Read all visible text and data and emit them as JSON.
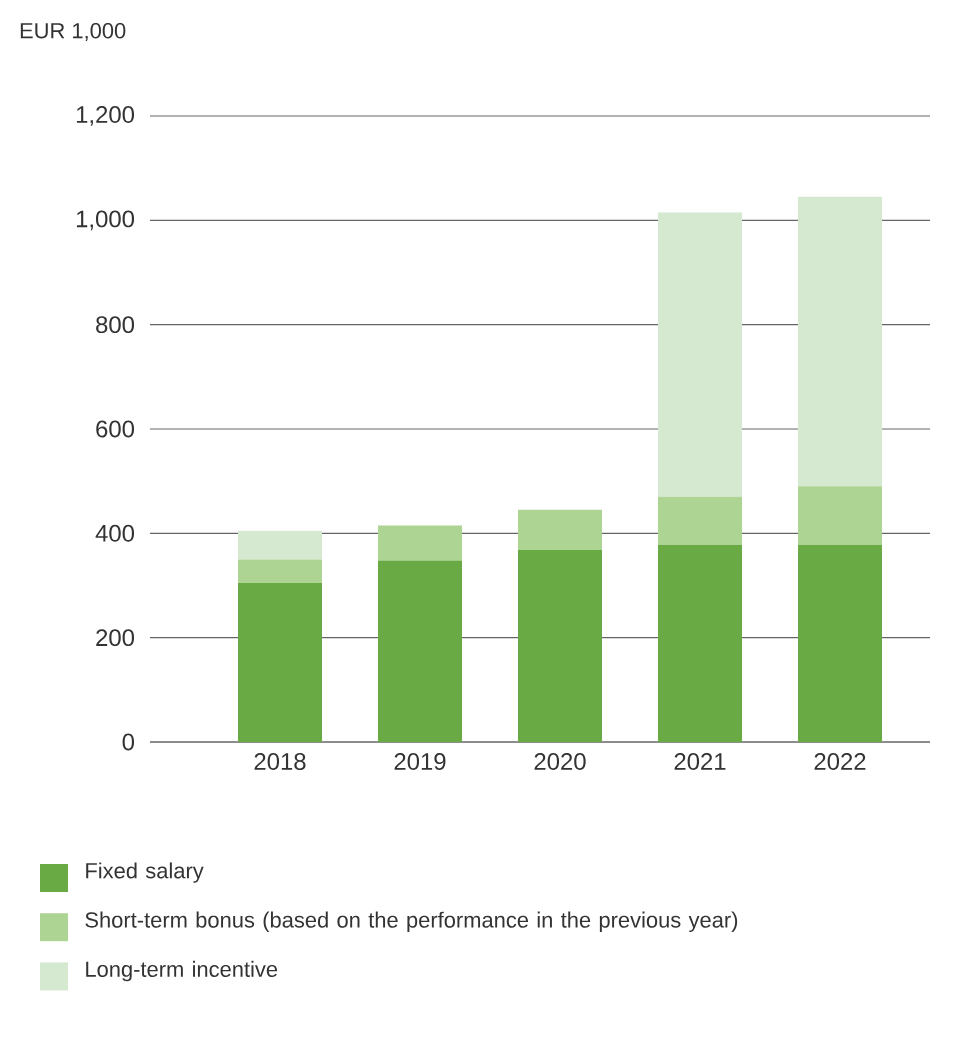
{
  "chart_data": {
    "type": "bar",
    "stacked": true,
    "ylabel": "EUR 1,000",
    "categories": [
      "2018",
      "2019",
      "2020",
      "2021",
      "2022"
    ],
    "series": [
      {
        "name": "Fixed salary",
        "color": "#6aaa45",
        "values": [
          305,
          348,
          368,
          378,
          378
        ]
      },
      {
        "name": "Short-term bonus (based on the performance in the previous year)",
        "color": "#aed494",
        "values": [
          45,
          67,
          77,
          92,
          112
        ]
      },
      {
        "name": "Long-term incentive",
        "color": "#d5e8d0",
        "values": [
          55,
          0,
          0,
          545,
          555
        ]
      }
    ],
    "ylim": [
      0,
      1200
    ],
    "yticks": [
      0,
      200,
      400,
      600,
      800,
      {
        "value": 1000,
        "label": "1,000"
      },
      {
        "value": 1200,
        "label": "1,200"
      }
    ],
    "grid": "y",
    "legend": "bottom"
  }
}
